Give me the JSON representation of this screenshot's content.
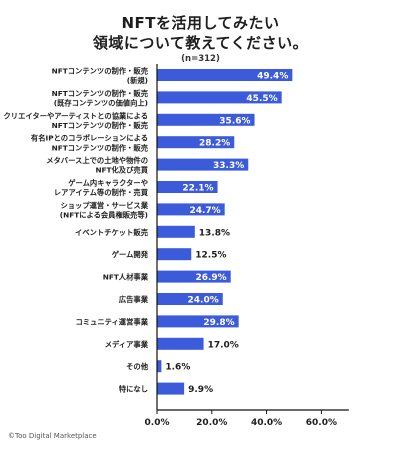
{
  "title_lines": [
    "NFTを活用してみたい",
    "領域について教えてください。"
  ],
  "subtitle": "(n=312)",
  "footer": "©Too Digital Marketplace",
  "colors": {
    "bar": "#3b5bdb",
    "axis": "#111111",
    "outside_label": "#1e1e1e",
    "inside_label": "#ffffff"
  },
  "chart_data": {
    "type": "bar",
    "orientation": "horizontal",
    "categories": [
      [
        "NFTコンテンツの制作・販売",
        "(新規)"
      ],
      [
        "NFTコンテンツの制作・販売",
        "(既存コンテンツの価値向上)"
      ],
      [
        "クリエイターやアーティストとの協業による",
        "NFTコンテンツの制作・販売"
      ],
      [
        "有名IPとのコラボレーションによる",
        "NFTコンテンツの制作・販売"
      ],
      [
        "メタバース上での土地や物件の",
        "NFT化及び売買"
      ],
      [
        "ゲーム内キャラクターや",
        "レアアイテム等の制作・売買"
      ],
      [
        "ショップ運営・サービス業",
        "(NFTによる会員権販売等)"
      ],
      [
        "イベントチケット販売"
      ],
      [
        "ゲーム開発"
      ],
      [
        "NFT人材事業"
      ],
      [
        "広告事業"
      ],
      [
        "コミュニティ運営事業"
      ],
      [
        "メディア事業"
      ],
      [
        "その他"
      ],
      [
        "特になし"
      ]
    ],
    "values": [
      49.4,
      45.5,
      35.6,
      28.2,
      33.3,
      22.1,
      24.7,
      13.8,
      12.5,
      26.9,
      24.0,
      29.8,
      17.0,
      1.6,
      9.9
    ],
    "value_labels": [
      "49.4%",
      "45.5%",
      "35.6%",
      "28.2%",
      "33.3%",
      "22.1%",
      "24.7%",
      "13.8%",
      "12.5%",
      "26.9%",
      "24.0%",
      "29.8%",
      "17.0%",
      "1.6%",
      "9.9%"
    ],
    "xlim": [
      0,
      70
    ],
    "xticks": [
      0,
      20,
      40,
      60
    ],
    "xtick_labels": [
      "0.0%",
      "20.0%",
      "40.0%",
      "60.0%"
    ],
    "grid": false,
    "legend": "none"
  }
}
